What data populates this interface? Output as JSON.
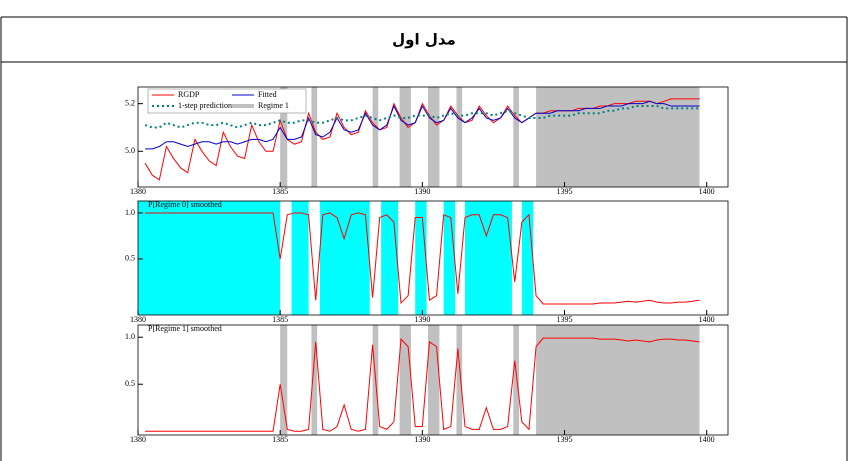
{
  "header": {
    "title": "مدل اول"
  },
  "chart_data": [
    {
      "type": "line",
      "x": [
        1380.25,
        1380.5,
        1380.75,
        1381,
        1381.25,
        1381.5,
        1381.75,
        1382,
        1382.25,
        1382.5,
        1382.75,
        1383,
        1383.25,
        1383.5,
        1383.75,
        1384,
        1384.25,
        1384.5,
        1384.75,
        1385,
        1385.25,
        1385.5,
        1385.75,
        1386,
        1386.25,
        1386.5,
        1386.75,
        1387,
        1387.25,
        1387.5,
        1387.75,
        1388,
        1388.25,
        1388.5,
        1388.75,
        1389,
        1389.25,
        1389.5,
        1389.75,
        1390,
        1390.25,
        1390.5,
        1390.75,
        1391,
        1391.25,
        1391.5,
        1391.75,
        1392,
        1392.25,
        1392.5,
        1392.75,
        1393,
        1393.25,
        1393.5,
        1393.75,
        1394,
        1394.25,
        1394.5,
        1394.75,
        1395,
        1395.25,
        1395.5,
        1395.75,
        1396,
        1396.25,
        1396.5,
        1396.75,
        1397,
        1397.25,
        1397.5,
        1397.75,
        1398,
        1398.25,
        1398.5,
        1398.75,
        1399,
        1399.25,
        1399.5,
        1399.75
      ],
      "series": [
        {
          "name": "RGDP",
          "color": "#ff0000",
          "values": [
            4.95,
            4.9,
            4.88,
            5.02,
            4.97,
            4.93,
            4.91,
            5.05,
            5.0,
            4.96,
            4.94,
            5.08,
            5.02,
            4.98,
            4.97,
            5.11,
            5.04,
            5.0,
            5.0,
            5.13,
            5.05,
            5.03,
            5.04,
            5.16,
            5.08,
            5.05,
            5.06,
            5.16,
            5.1,
            5.07,
            5.08,
            5.17,
            5.12,
            5.09,
            5.1,
            5.2,
            5.14,
            5.1,
            5.12,
            5.2,
            5.15,
            5.11,
            5.13,
            5.19,
            5.15,
            5.12,
            5.13,
            5.19,
            5.15,
            5.12,
            5.14,
            5.19,
            5.15,
            5.12,
            5.14,
            5.16,
            5.16,
            5.17,
            5.17,
            5.17,
            5.17,
            5.18,
            5.18,
            5.18,
            5.19,
            5.19,
            5.2,
            5.2,
            5.2,
            5.21,
            5.21,
            5.21,
            5.2,
            5.21,
            5.22,
            5.22,
            5.22,
            5.22,
            5.22
          ]
        },
        {
          "name": "Fitted",
          "color": "#0000cc",
          "values": [
            5.01,
            5.01,
            5.02,
            5.04,
            5.04,
            5.03,
            5.02,
            5.03,
            5.04,
            5.04,
            5.03,
            5.04,
            5.04,
            5.03,
            5.04,
            5.05,
            5.05,
            5.04,
            5.05,
            5.1,
            5.05,
            5.05,
            5.06,
            5.14,
            5.07,
            5.06,
            5.08,
            5.14,
            5.09,
            5.08,
            5.09,
            5.16,
            5.11,
            5.09,
            5.11,
            5.19,
            5.13,
            5.11,
            5.12,
            5.19,
            5.14,
            5.12,
            5.13,
            5.18,
            5.14,
            5.12,
            5.14,
            5.18,
            5.14,
            5.13,
            5.14,
            5.18,
            5.14,
            5.12,
            5.14,
            5.16,
            5.16,
            5.16,
            5.17,
            5.17,
            5.17,
            5.17,
            5.18,
            5.18,
            5.18,
            5.19,
            5.19,
            5.19,
            5.2,
            5.2,
            5.2,
            5.21,
            5.2,
            5.2,
            5.19,
            5.19,
            5.19,
            5.19,
            5.19
          ]
        },
        {
          "name": "1-step prediction",
          "color": "#008080",
          "dashed": true,
          "values": [
            5.11,
            5.1,
            5.1,
            5.12,
            5.11,
            5.1,
            5.11,
            5.12,
            5.12,
            5.11,
            5.11,
            5.12,
            5.11,
            5.1,
            5.11,
            5.12,
            5.11,
            5.11,
            5.12,
            5.13,
            5.12,
            5.12,
            5.13,
            5.13,
            5.12,
            5.12,
            5.13,
            5.14,
            5.13,
            5.13,
            5.14,
            5.15,
            5.14,
            5.13,
            5.14,
            5.15,
            5.14,
            5.14,
            5.15,
            5.15,
            5.15,
            5.14,
            5.15,
            5.16,
            5.15,
            5.15,
            5.16,
            5.16,
            5.16,
            5.15,
            5.16,
            5.17,
            5.16,
            5.15,
            5.14,
            5.14,
            5.14,
            5.15,
            5.15,
            5.15,
            5.15,
            5.16,
            5.16,
            5.16,
            5.16,
            5.17,
            5.17,
            5.18,
            5.18,
            5.19,
            5.19,
            5.19,
            5.19,
            5.18,
            5.18,
            5.18,
            5.18,
            5.18,
            5.18
          ]
        }
      ],
      "shading": {
        "name": "Regime 1",
        "color": "#c0c0c0",
        "intervals": [
          [
            1385,
            1385.25
          ],
          [
            1386.1,
            1386.3
          ],
          [
            1388.25,
            1388.45
          ],
          [
            1389.2,
            1389.6
          ],
          [
            1390.2,
            1390.6
          ],
          [
            1391.2,
            1391.4
          ],
          [
            1393.2,
            1393.4
          ],
          [
            1394,
            1399.75
          ]
        ]
      },
      "legend": "top-left",
      "xlim": [
        1380,
        1400.75
      ],
      "xticks": [
        1380,
        1385,
        1390,
        1395,
        1400
      ],
      "ylim": [
        4.85,
        5.27
      ],
      "yticks": [
        {
          "value": 5,
          "label": "5.0"
        },
        5.2
      ]
    },
    {
      "type": "line",
      "title": "P[Regime 0] smoothed",
      "x": [
        1380.25,
        1380.5,
        1380.75,
        1381,
        1381.25,
        1381.5,
        1381.75,
        1382,
        1382.25,
        1382.5,
        1382.75,
        1383,
        1383.25,
        1383.5,
        1383.75,
        1384,
        1384.25,
        1384.5,
        1384.75,
        1385,
        1385.25,
        1385.5,
        1385.75,
        1386,
        1386.25,
        1386.5,
        1386.75,
        1387,
        1387.25,
        1387.5,
        1387.75,
        1388,
        1388.25,
        1388.5,
        1388.75,
        1389,
        1389.25,
        1389.5,
        1389.75,
        1390,
        1390.25,
        1390.5,
        1390.75,
        1391,
        1391.25,
        1391.5,
        1391.75,
        1392,
        1392.25,
        1392.5,
        1392.75,
        1393,
        1393.25,
        1393.5,
        1393.75,
        1394,
        1394.25,
        1394.5,
        1394.75,
        1395,
        1395.25,
        1395.5,
        1395.75,
        1396,
        1396.25,
        1396.5,
        1396.75,
        1397,
        1397.25,
        1397.5,
        1397.75,
        1398,
        1398.25,
        1398.5,
        1398.75,
        1399,
        1399.25,
        1399.5,
        1399.75
      ],
      "series": [
        {
          "color": "#ff0000",
          "values": [
            1,
            1,
            1,
            1,
            1,
            1,
            1,
            1,
            1,
            1,
            1,
            1,
            1,
            1,
            1,
            1,
            1,
            1,
            1,
            0.5,
            0.98,
            1,
            1,
            0.98,
            0.05,
            0.98,
            1,
            0.95,
            0.72,
            0.98,
            1,
            0.98,
            0.08,
            0.95,
            0.98,
            0.9,
            0.02,
            0.1,
            0.95,
            0.95,
            0.05,
            0.1,
            0.98,
            0.95,
            0.12,
            0.95,
            0.98,
            0.98,
            0.75,
            0.98,
            0.98,
            0.95,
            0.25,
            0.9,
            0.98,
            0.1,
            0.01,
            0.01,
            0.01,
            0.01,
            0.01,
            0.01,
            0.01,
            0.01,
            0.02,
            0.02,
            0.02,
            0.03,
            0.04,
            0.03,
            0.04,
            0.05,
            0.03,
            0.02,
            0.02,
            0.03,
            0.03,
            0.04,
            0.05
          ]
        }
      ],
      "shading": {
        "color": "#00ffff",
        "intervals": [
          [
            1380,
            1385
          ],
          [
            1385.4,
            1386
          ],
          [
            1386.4,
            1388.15
          ],
          [
            1388.55,
            1389.15
          ],
          [
            1389.75,
            1390.15
          ],
          [
            1390.75,
            1391.15
          ],
          [
            1391.5,
            1393.15
          ],
          [
            1393.5,
            1393.9
          ]
        ]
      },
      "xlim": [
        1380,
        1400.75
      ],
      "xticks": [
        1380,
        1385,
        1390,
        1395,
        1400
      ],
      "ylim": [
        -0.11,
        1.13
      ],
      "yticks": [
        0.5,
        {
          "value": 1,
          "label": "1.0"
        }
      ]
    },
    {
      "type": "line",
      "title": "P[Regime 1] smoothed",
      "x": [
        1380.25,
        1380.5,
        1380.75,
        1381,
        1381.25,
        1381.5,
        1381.75,
        1382,
        1382.25,
        1382.5,
        1382.75,
        1383,
        1383.25,
        1383.5,
        1383.75,
        1384,
        1384.25,
        1384.5,
        1384.75,
        1385,
        1385.25,
        1385.5,
        1385.75,
        1386,
        1386.25,
        1386.5,
        1386.75,
        1387,
        1387.25,
        1387.5,
        1387.75,
        1388,
        1388.25,
        1388.5,
        1388.75,
        1389,
        1389.25,
        1389.5,
        1389.75,
        1390,
        1390.25,
        1390.5,
        1390.75,
        1391,
        1391.25,
        1391.5,
        1391.75,
        1392,
        1392.25,
        1392.5,
        1392.75,
        1393,
        1393.25,
        1393.5,
        1393.75,
        1394,
        1394.25,
        1394.5,
        1394.75,
        1395,
        1395.25,
        1395.5,
        1395.75,
        1396,
        1396.25,
        1396.5,
        1396.75,
        1397,
        1397.25,
        1397.5,
        1397.75,
        1398,
        1398.25,
        1398.5,
        1398.75,
        1399,
        1399.25,
        1399.5,
        1399.75
      ],
      "series": [
        {
          "color": "#ff0000",
          "values": [
            0,
            0,
            0,
            0,
            0,
            0,
            0,
            0,
            0,
            0,
            0,
            0,
            0,
            0,
            0,
            0,
            0,
            0,
            0,
            0.5,
            0.02,
            0,
            0,
            0.02,
            0.95,
            0.02,
            0,
            0.05,
            0.28,
            0.02,
            0,
            0.02,
            0.92,
            0.05,
            0.02,
            0.1,
            0.98,
            0.9,
            0.05,
            0.05,
            0.95,
            0.9,
            0.02,
            0.05,
            0.88,
            0.05,
            0.02,
            0.02,
            0.25,
            0.02,
            0.02,
            0.05,
            0.75,
            0.1,
            0.02,
            0.9,
            0.99,
            0.99,
            0.99,
            0.99,
            0.99,
            0.99,
            0.99,
            0.99,
            0.98,
            0.98,
            0.98,
            0.97,
            0.96,
            0.97,
            0.96,
            0.95,
            0.97,
            0.98,
            0.98,
            0.97,
            0.97,
            0.96,
            0.95
          ]
        }
      ],
      "shading": {
        "color": "#c0c0c0",
        "intervals": [
          [
            1385,
            1385.25
          ],
          [
            1386.1,
            1386.3
          ],
          [
            1388.25,
            1388.45
          ],
          [
            1389.2,
            1389.6
          ],
          [
            1390.2,
            1390.6
          ],
          [
            1391.2,
            1391.4
          ],
          [
            1393.2,
            1393.4
          ],
          [
            1394,
            1399.75
          ]
        ]
      },
      "xlim": [
        1380,
        1400.75
      ],
      "xticks": [
        1380,
        1385,
        1390,
        1395,
        1400
      ],
      "ylim": [
        -0.04,
        1.13
      ],
      "yticks": [
        0.5,
        {
          "value": 1,
          "label": "1.0"
        }
      ]
    }
  ]
}
